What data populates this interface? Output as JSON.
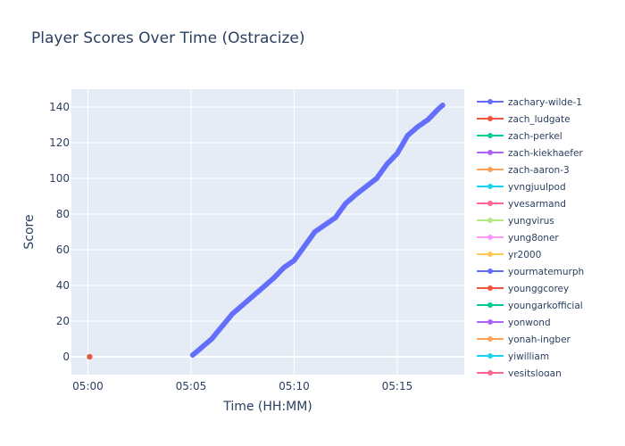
{
  "chart_data": {
    "type": "line",
    "title": "Player Scores Over Time (Ostracize)",
    "xlabel": "Time (HH:MM)",
    "ylabel": "Score",
    "x_ticks": [
      "05:00",
      "05:05",
      "05:10",
      "05:15"
    ],
    "x_range": [
      "05:00",
      "05:18"
    ],
    "y_ticks": [
      0,
      20,
      40,
      60,
      80,
      100,
      120,
      140
    ],
    "ylim": [
      -10,
      150
    ],
    "grid": true,
    "legend_position": "right",
    "series": [
      {
        "name": "zachary-wilde-1",
        "color": "#636efa",
        "x": [
          "05:05:05",
          "05:06:00",
          "05:07:00",
          "05:08:00",
          "05:09:00",
          "05:09:30",
          "05:10:00",
          "05:10:30",
          "05:11:00",
          "05:12:00",
          "05:12:30",
          "05:13:00",
          "05:14:00",
          "05:14:30",
          "05:15:00",
          "05:15:30",
          "05:16:00",
          "05:16:30",
          "05:17:00",
          "05:17:12"
        ],
        "y": [
          1,
          10,
          24,
          34,
          44,
          50,
          54,
          62,
          70,
          78,
          86,
          91,
          100,
          108,
          114,
          124,
          129,
          133,
          139,
          141
        ]
      },
      {
        "name": "zach_ludgate",
        "color": "#ef553b",
        "x": [
          "05:00:05"
        ],
        "y": [
          0
        ]
      },
      {
        "name": "zach-perkel",
        "color": "#00cc96",
        "x": [
          "05:00:05"
        ],
        "y": [
          0
        ]
      },
      {
        "name": "zach-kiekhaefer",
        "color": "#ab63fa",
        "x": [
          "05:00:05"
        ],
        "y": [
          0
        ]
      },
      {
        "name": "zach-aaron-3",
        "color": "#ffa15a",
        "x": [
          "05:00:05"
        ],
        "y": [
          0
        ]
      },
      {
        "name": "yvngjuulpod",
        "color": "#19d3f3",
        "x": [
          "05:00:05"
        ],
        "y": [
          0
        ]
      },
      {
        "name": "yvesarmand",
        "color": "#ff6692",
        "x": [
          "05:00:05"
        ],
        "y": [
          0
        ]
      },
      {
        "name": "yungvirus",
        "color": "#b6e880",
        "x": [
          "05:00:05"
        ],
        "y": [
          0
        ]
      },
      {
        "name": "yung8oner",
        "color": "#ff97ff",
        "x": [
          "05:00:05"
        ],
        "y": [
          0
        ]
      },
      {
        "name": "yr2000",
        "color": "#fecb52",
        "x": [
          "05:00:05"
        ],
        "y": [
          0
        ]
      },
      {
        "name": "yourmatemurph",
        "color": "#636efa",
        "x": [
          "05:00:05"
        ],
        "y": [
          0
        ]
      },
      {
        "name": "younggcorey",
        "color": "#ef553b",
        "x": [
          "05:00:05"
        ],
        "y": [
          0
        ]
      },
      {
        "name": "youngarkofficial",
        "color": "#00cc96",
        "x": [
          "05:00:05"
        ],
        "y": [
          0
        ]
      },
      {
        "name": "yonwond",
        "color": "#ab63fa",
        "x": [
          "05:00:05"
        ],
        "y": [
          0
        ]
      },
      {
        "name": "yonah-ingber",
        "color": "#ffa15a",
        "x": [
          "05:00:05"
        ],
        "y": [
          0
        ]
      },
      {
        "name": "yiwilliam",
        "color": "#19d3f3",
        "x": [
          "05:00:05"
        ],
        "y": [
          0
        ]
      },
      {
        "name": "yesitslogan",
        "color": "#ff6692",
        "x": [
          "05:00:05"
        ],
        "y": [
          0
        ]
      }
    ]
  }
}
